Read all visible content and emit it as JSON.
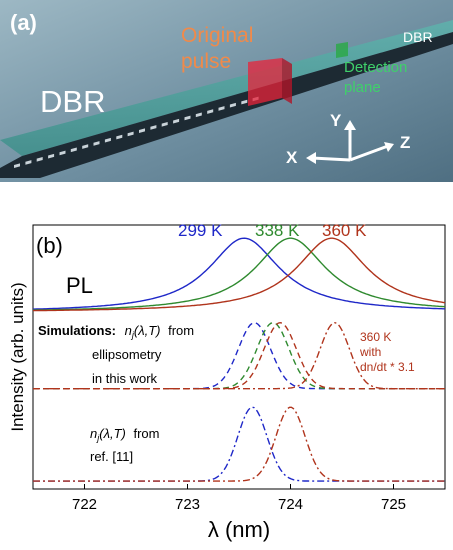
{
  "panel_a": {
    "label": "(a)",
    "dbr_left": "DBR",
    "dbr_right": "DBR",
    "original_pulse": [
      "Original",
      "pulse"
    ],
    "detection_plane": [
      "Detection",
      "plane"
    ],
    "axis_x": "X",
    "axis_y": "Y",
    "axis_z": "Z"
  },
  "panel_b": {
    "label": "(b)",
    "pl_label": "PL",
    "temps": [
      {
        "text": "299 K",
        "color": "#1f28c8"
      },
      {
        "text": "338 K",
        "color": "#2f8a2f"
      },
      {
        "text": "360 K",
        "color": "#b0341c"
      }
    ],
    "sim_title_bold": "Simulations:",
    "sim_n_sym": "n",
    "sim_n_sub": "j",
    "sim_n_args": "(λ,T)",
    "sim_from": "from",
    "sim_line2": "ellipsometry",
    "sim_line3": "in this work",
    "annot_360": [
      "360 K",
      "with",
      "dn/dt * 3.1"
    ],
    "ref_from": "from",
    "ref_line2": "ref. [11]",
    "ylabel": "Intensity (arb. units)",
    "xlabel": "λ (nm)",
    "x_ticks": [
      "722",
      "723",
      "724",
      "725"
    ]
  },
  "chart_data": {
    "type": "line",
    "xlabel": "λ (nm)",
    "ylabel": "Intensity (arb. units)",
    "xlim": [
      721.5,
      725.5
    ],
    "ylim": [
      0,
      1
    ],
    "x_ticks": [
      722,
      723,
      724,
      725
    ],
    "grid": false,
    "series": [
      {
        "name": "299 K",
        "group": "PL",
        "style": "solid",
        "color": "#1f28c8",
        "peak_x": 723.55,
        "peak_y": 0.95,
        "width": 0.42,
        "base": 0.67
      },
      {
        "name": "338 K",
        "group": "PL",
        "style": "solid",
        "color": "#2f8a2f",
        "peak_x": 724.0,
        "peak_y": 0.95,
        "width": 0.42,
        "base": 0.67
      },
      {
        "name": "360 K",
        "group": "PL",
        "style": "solid",
        "color": "#b0341c",
        "peak_x": 724.4,
        "peak_y": 0.95,
        "width": 0.42,
        "base": 0.67
      },
      {
        "name": "",
        "group": "ellipsometry",
        "style": "dashed",
        "color": "#1f28c8",
        "peak_x": 723.65,
        "peak_y": 0.63,
        "width": 0.22,
        "base": 0.38
      },
      {
        "name": "",
        "group": "ellipsometry",
        "style": "dashed",
        "color": "#2f8a2f",
        "peak_x": 723.83,
        "peak_y": 0.63,
        "width": 0.22,
        "base": 0.38
      },
      {
        "name": "",
        "group": "ellipsometry",
        "style": "dashed",
        "color": "#b0341c",
        "peak_x": 723.9,
        "peak_y": 0.63,
        "width": 0.22,
        "base": 0.38
      },
      {
        "name": "",
        "group": "ellipsometry",
        "style": "dashdot",
        "color": "#b0341c",
        "peak_x": 724.43,
        "peak_y": 0.63,
        "width": 0.2,
        "base": 0.38
      },
      {
        "name": "",
        "group": "ref11",
        "style": "dashdot",
        "color": "#1f28c8",
        "peak_x": 723.63,
        "peak_y": 0.31,
        "width": 0.2,
        "base": 0.03
      },
      {
        "name": "",
        "group": "ref11",
        "style": "dashdot",
        "color": "#b0341c",
        "peak_x": 724.0,
        "peak_y": 0.31,
        "width": 0.2,
        "base": 0.03
      }
    ]
  }
}
